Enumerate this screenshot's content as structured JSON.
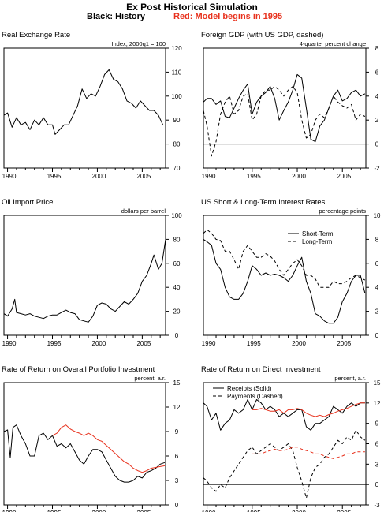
{
  "header": {
    "title": "Ex Post Historical Simulation",
    "subtitle_black": "Black: History",
    "subtitle_red": "Red: Model begins in 1995"
  },
  "colors": {
    "history": "#000000",
    "model": "#e8321e"
  },
  "chart_data": [
    {
      "type": "line",
      "title": "Real Exchange Rate",
      "units": "Index, 2000q1 = 100",
      "xlim": [
        1989.6,
        2007.6
      ],
      "ylim": [
        70,
        120
      ],
      "yticks": [
        70,
        80,
        90,
        100,
        110,
        120
      ],
      "xticks": [
        1990,
        1995,
        2000,
        2005
      ],
      "zero_line": false,
      "series": [
        {
          "style": "solid",
          "color": "#000000",
          "x": [
            1989.6,
            1990,
            1990.5,
            1991,
            1991.5,
            1992,
            1992.5,
            1993,
            1993.5,
            1994,
            1994.5,
            1995,
            1995.3,
            1995.8,
            1996.3,
            1996.8,
            1997.3,
            1997.8,
            1998.3,
            1998.8,
            1999.3,
            1999.8,
            2000.3,
            2000.8,
            2001.3,
            2001.8,
            2002.3,
            2002.8,
            2003.3,
            2003.8,
            2004.3,
            2004.8,
            2005.3,
            2005.8,
            2006.3,
            2006.8,
            2007.3
          ],
          "y": [
            92,
            93,
            87,
            91,
            88,
            89,
            86,
            90,
            88,
            91,
            88,
            88,
            84,
            86,
            88,
            88,
            92,
            96,
            103,
            99,
            101,
            100,
            104,
            109,
            111,
            107,
            106,
            103,
            98,
            97,
            95,
            98,
            96,
            94,
            94,
            92,
            88
          ]
        }
      ]
    },
    {
      "type": "line",
      "title": "Foreign GDP (with US GDP, dashed)",
      "units": "4-quarter percent change",
      "xlim": [
        1989.6,
        2007.6
      ],
      "ylim": [
        -2,
        8
      ],
      "yticks": [
        -2,
        0,
        2,
        4,
        6,
        8
      ],
      "xticks": [
        1990,
        1995,
        2000,
        2005
      ],
      "zero_line": true,
      "series": [
        {
          "style": "solid",
          "color": "#000000",
          "x": [
            1989.6,
            1990,
            1990.5,
            1991,
            1991.5,
            1992,
            1992.5,
            1993,
            1993.5,
            1994,
            1994.5,
            1995,
            1995.5,
            1996,
            1996.5,
            1997,
            1997.5,
            1998,
            1998.5,
            1999,
            1999.5,
            2000,
            2000.5,
            2001,
            2001.5,
            2002,
            2002.5,
            2003,
            2003.5,
            2004,
            2004.5,
            2005,
            2005.5,
            2006,
            2006.5,
            2007,
            2007.5
          ],
          "y": [
            3.5,
            3.8,
            3.8,
            3.3,
            3.6,
            2.3,
            2.2,
            3.0,
            3.8,
            4.5,
            5.0,
            2.5,
            3.5,
            4.0,
            4.3,
            4.8,
            3.8,
            2.0,
            2.8,
            3.5,
            4.5,
            5.8,
            5.5,
            3.0,
            0.4,
            0.2,
            1.5,
            2.0,
            3.0,
            4.0,
            4.5,
            3.6,
            3.8,
            4.3,
            4.5,
            4.0,
            4.2
          ]
        },
        {
          "style": "dashed",
          "color": "#000000",
          "x": [
            1989.6,
            1990,
            1990.5,
            1991,
            1991.5,
            1992,
            1992.5,
            1993,
            1993.5,
            1994,
            1994.5,
            1995,
            1995.5,
            1996,
            1996.5,
            1997,
            1997.5,
            1998,
            1998.5,
            1999,
            1999.5,
            2000,
            2000.5,
            2001,
            2001.5,
            2002,
            2002.5,
            2003,
            2003.5,
            2004,
            2004.5,
            2005,
            2005.5,
            2006,
            2006.5,
            2007,
            2007.5
          ],
          "y": [
            2.8,
            1.5,
            -1.0,
            0.2,
            2.5,
            3.5,
            4.0,
            2.5,
            2.8,
            4.0,
            4.2,
            2.0,
            2.5,
            4.0,
            4.5,
            4.5,
            4.8,
            4.5,
            4.0,
            4.5,
            4.8,
            4.3,
            2.0,
            0.5,
            0.8,
            2.0,
            2.5,
            2.2,
            3.0,
            4.0,
            3.5,
            3.2,
            3.0,
            3.3,
            2.0,
            2.5,
            2.3
          ]
        }
      ]
    },
    {
      "type": "line",
      "title": "Oil Import Price",
      "units": "dollars per barrel",
      "xlim": [
        1989.6,
        2007.6
      ],
      "ylim": [
        0,
        100
      ],
      "yticks": [
        0,
        20,
        40,
        60,
        80,
        100
      ],
      "xticks": [
        1990,
        1995,
        2000,
        2005
      ],
      "zero_line": false,
      "series": [
        {
          "style": "solid",
          "color": "#000000",
          "x": [
            1989.6,
            1990,
            1990.5,
            1990.8,
            1991,
            1991.5,
            1992,
            1992.5,
            1993,
            1993.5,
            1994,
            1994.5,
            1995,
            1995.5,
            1996,
            1996.5,
            1997,
            1997.5,
            1998,
            1998.5,
            1999,
            1999.5,
            2000,
            2000.5,
            2001,
            2001.5,
            2002,
            2002.5,
            2003,
            2003.5,
            2004,
            2004.5,
            2005,
            2005.5,
            2006,
            2006.3,
            2006.8,
            2007.2,
            2007.6
          ],
          "y": [
            18,
            16,
            22,
            30,
            19,
            18,
            17,
            18,
            16,
            15,
            14,
            16,
            17,
            17,
            19,
            21,
            19,
            18,
            13,
            12,
            11,
            16,
            25,
            27,
            26,
            22,
            20,
            24,
            28,
            26,
            30,
            35,
            45,
            50,
            60,
            67,
            55,
            60,
            80
          ]
        }
      ]
    },
    {
      "type": "line",
      "title": "US Short & Long-Term Interest Rates",
      "units": "percentage points",
      "xlim": [
        1989.6,
        2007.6
      ],
      "ylim": [
        0,
        10
      ],
      "yticks": [
        0,
        2,
        4,
        6,
        8,
        10
      ],
      "xticks": [
        1990,
        1995,
        2000,
        2005
      ],
      "zero_line": false,
      "legend": [
        "Short-Term",
        "Long-Term"
      ],
      "series": [
        {
          "name": "Short-Term",
          "style": "solid",
          "color": "#000000",
          "x": [
            1989.6,
            1990,
            1990.5,
            1991,
            1991.5,
            1992,
            1992.5,
            1993,
            1993.5,
            1994,
            1994.5,
            1995,
            1995.5,
            1996,
            1996.5,
            1997,
            1997.5,
            1998,
            1998.5,
            1999,
            1999.5,
            2000,
            2000.5,
            2001,
            2001.5,
            2002,
            2002.5,
            2003,
            2003.5,
            2004,
            2004.5,
            2005,
            2005.5,
            2006,
            2006.5,
            2007,
            2007.5
          ],
          "y": [
            8.0,
            7.8,
            7.5,
            6.0,
            5.5,
            4.0,
            3.2,
            3.0,
            3.0,
            3.5,
            4.5,
            5.8,
            5.5,
            5.0,
            5.2,
            5.0,
            5.1,
            5.0,
            4.8,
            4.5,
            5.0,
            5.8,
            6.5,
            4.5,
            3.5,
            1.8,
            1.6,
            1.2,
            1.0,
            1.0,
            1.5,
            2.8,
            3.5,
            4.5,
            5.0,
            5.0,
            3.5
          ]
        },
        {
          "name": "Long-Term",
          "style": "dashed",
          "color": "#000000",
          "x": [
            1989.6,
            1990,
            1990.5,
            1991,
            1991.5,
            1992,
            1992.5,
            1993,
            1993.5,
            1994,
            1994.5,
            1995,
            1995.5,
            1996,
            1996.5,
            1997,
            1997.5,
            1998,
            1998.5,
            1999,
            1999.5,
            2000,
            2000.5,
            2001,
            2001.5,
            2002,
            2002.5,
            2003,
            2003.5,
            2004,
            2004.5,
            2005,
            2005.5,
            2006,
            2006.5,
            2007,
            2007.5
          ],
          "y": [
            8.5,
            8.8,
            8.5,
            8.0,
            7.9,
            7.0,
            7.0,
            6.3,
            5.5,
            7.0,
            7.5,
            7.0,
            6.5,
            6.5,
            6.8,
            6.6,
            6.2,
            5.5,
            5.0,
            5.5,
            6.0,
            6.3,
            5.8,
            5.0,
            5.0,
            4.7,
            4.0,
            4.0,
            4.0,
            4.5,
            4.3,
            4.3,
            4.5,
            4.8,
            5.0,
            4.8,
            4.6
          ]
        }
      ]
    },
    {
      "type": "line",
      "title": "Rate of Return on Overall Portfolio Investment",
      "units": "percent, a.r.",
      "xlim": [
        1989.6,
        2007.6
      ],
      "ylim": [
        0,
        15
      ],
      "yticks": [
        0,
        3,
        6,
        9,
        12,
        15
      ],
      "xticks": [
        1990,
        1995,
        2000,
        2005
      ],
      "zero_line": false,
      "series": [
        {
          "style": "solid",
          "color": "#000000",
          "x": [
            1989.6,
            1990,
            1990.3,
            1990.6,
            1991,
            1991.5,
            1992,
            1992.5,
            1993,
            1993.5,
            1994,
            1994.5,
            1995,
            1995.5,
            1996,
            1996.5,
            1997,
            1997.5,
            1998,
            1998.5,
            1999,
            1999.5,
            2000,
            2000.5,
            2001,
            2001.5,
            2002,
            2002.5,
            2003,
            2003.5,
            2004,
            2004.5,
            2005,
            2005.5,
            2006,
            2006.5,
            2007,
            2007.5
          ],
          "y": [
            9.0,
            9.2,
            5.8,
            9.5,
            9.8,
            8.5,
            7.5,
            6.0,
            6.0,
            8.5,
            8.8,
            8.0,
            8.5,
            7.2,
            7.5,
            7.0,
            7.5,
            6.5,
            5.5,
            5.0,
            6.0,
            6.8,
            6.8,
            6.5,
            5.5,
            4.5,
            3.5,
            3.0,
            2.8,
            2.8,
            3.0,
            3.5,
            3.3,
            4.0,
            4.2,
            4.5,
            5.0,
            5.2
          ]
        },
        {
          "style": "solid",
          "color": "#e8321e",
          "x": [
            1995,
            1995.5,
            1996,
            1996.5,
            1997,
            1997.5,
            1998,
            1998.5,
            1999,
            1999.5,
            2000,
            2000.5,
            2001,
            2001.5,
            2002,
            2002.5,
            2003,
            2003.5,
            2004,
            2004.5,
            2005,
            2005.5,
            2006,
            2006.5,
            2007,
            2007.5
          ],
          "y": [
            8.5,
            8.8,
            9.5,
            9.8,
            9.3,
            9.0,
            8.8,
            8.5,
            8.8,
            8.5,
            8.0,
            7.8,
            7.3,
            6.8,
            6.3,
            5.8,
            5.3,
            5.0,
            4.5,
            4.2,
            4.0,
            4.2,
            4.5,
            4.6,
            4.7,
            4.8
          ]
        }
      ]
    },
    {
      "type": "line",
      "title": "Rate of Return on Direct Investment",
      "units": "percent, a.r.",
      "xlim": [
        1989.6,
        2007.6
      ],
      "ylim": [
        -3,
        15
      ],
      "yticks": [
        -3,
        0,
        3,
        6,
        9,
        12,
        15
      ],
      "xticks": [
        1990,
        1995,
        2000,
        2005
      ],
      "zero_line": true,
      "legend": [
        "Receipts (Solid)",
        "Payments (Dashed)"
      ],
      "series": [
        {
          "name": "Receipts (Solid)",
          "style": "solid",
          "color": "#000000",
          "x": [
            1989.6,
            1990,
            1990.5,
            1991,
            1991.5,
            1992,
            1992.5,
            1993,
            1993.5,
            1994,
            1994.5,
            1995,
            1995.5,
            1996,
            1996.5,
            1997,
            1997.5,
            1998,
            1998.5,
            1999,
            1999.5,
            2000,
            2000.5,
            2001,
            2001.5,
            2002,
            2002.5,
            2003,
            2003.5,
            2004,
            2004.5,
            2005,
            2005.5,
            2006,
            2006.5,
            2007,
            2007.5
          ],
          "y": [
            12.0,
            11.5,
            9.5,
            10.5,
            8.0,
            9.0,
            9.5,
            11.0,
            10.5,
            11.0,
            12.5,
            11.0,
            12.5,
            12.0,
            11.0,
            11.5,
            11.0,
            10.0,
            10.5,
            10.0,
            10.5,
            11.0,
            11.0,
            8.5,
            8.0,
            9.0,
            9.0,
            9.5,
            10.0,
            11.5,
            11.0,
            10.5,
            11.5,
            12.0,
            11.5,
            12.0,
            12.0
          ]
        },
        {
          "name": "Payments (Dashed)",
          "style": "dashed",
          "color": "#000000",
          "x": [
            1989.6,
            1990,
            1990.5,
            1991,
            1991.5,
            1992,
            1992.5,
            1993,
            1993.5,
            1994,
            1994.5,
            1995,
            1995.5,
            1996,
            1996.5,
            1997,
            1997.5,
            1998,
            1998.5,
            1999,
            1999.5,
            2000,
            2000.5,
            2001,
            2001.5,
            2002,
            2002.5,
            2003,
            2003.5,
            2004,
            2004.5,
            2005,
            2005.5,
            2006,
            2006.5,
            2007,
            2007.5
          ],
          "y": [
            1.0,
            0.5,
            -0.5,
            -1.0,
            0.0,
            -0.5,
            1.0,
            2.0,
            3.0,
            4.0,
            5.0,
            5.5,
            4.5,
            5.0,
            5.5,
            6.0,
            5.5,
            5.0,
            5.5,
            6.0,
            5.0,
            2.5,
            0.5,
            -2.0,
            1.0,
            2.5,
            3.0,
            4.0,
            4.5,
            5.5,
            6.5,
            6.0,
            7.0,
            6.5,
            8.0,
            7.0,
            6.5
          ]
        },
        {
          "style": "solid",
          "color": "#e8321e",
          "x": [
            1995,
            1995.5,
            1996,
            1996.5,
            1997,
            1997.5,
            1998,
            1998.5,
            1999,
            1999.5,
            2000,
            2000.5,
            2001,
            2001.5,
            2002,
            2002.5,
            2003,
            2003.5,
            2004,
            2004.5,
            2005,
            2005.5,
            2006,
            2006.5,
            2007,
            2007.5
          ],
          "y": [
            11.0,
            11.0,
            11.2,
            11.0,
            10.8,
            10.8,
            11.0,
            10.5,
            11.0,
            11.0,
            11.2,
            11.0,
            10.5,
            10.2,
            10.0,
            10.2,
            10.0,
            10.3,
            10.5,
            10.8,
            11.0,
            11.2,
            11.5,
            11.8,
            12.0,
            12.0
          ]
        },
        {
          "style": "dashed",
          "color": "#e8321e",
          "x": [
            1995,
            1995.5,
            1996,
            1996.5,
            1997,
            1997.5,
            1998,
            1998.5,
            1999,
            1999.5,
            2000,
            2000.5,
            2001,
            2001.5,
            2002,
            2002.5,
            2003,
            2003.5,
            2004,
            2004.5,
            2005,
            2005.5,
            2006,
            2006.5,
            2007,
            2007.5
          ],
          "y": [
            4.5,
            4.5,
            4.5,
            4.8,
            5.0,
            5.2,
            5.0,
            5.0,
            5.2,
            5.5,
            5.5,
            5.2,
            5.0,
            4.8,
            4.5,
            4.5,
            4.2,
            4.0,
            3.8,
            4.0,
            4.2,
            4.5,
            4.5,
            4.8,
            4.8,
            4.8
          ]
        }
      ]
    }
  ]
}
